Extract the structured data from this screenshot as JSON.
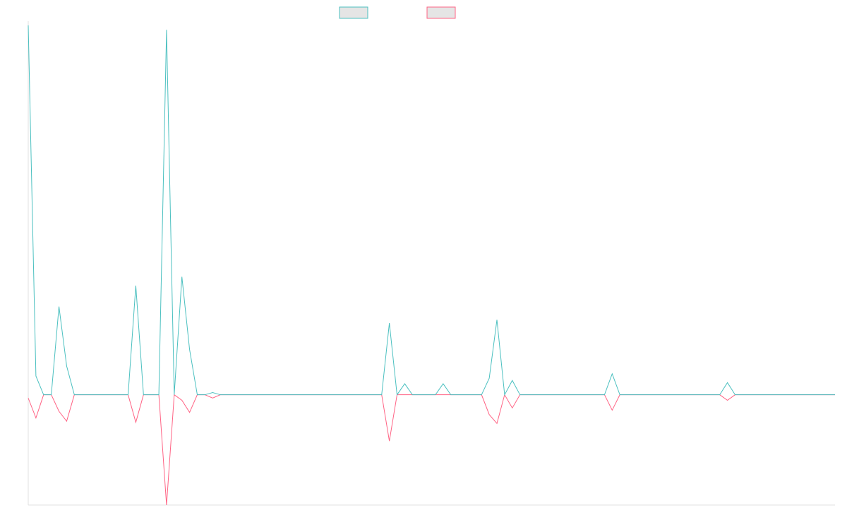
{
  "chart_data": {
    "type": "line",
    "title": "",
    "xlabel": "",
    "ylabel": "",
    "ylim": [
      -100,
      335
    ],
    "grid": false,
    "legend_position": "top-center",
    "x_count": 106,
    "series": [
      {
        "color": "#4bc0c0",
        "legend_fill": "#e5e5e5",
        "values": [
          335,
          17,
          0,
          0,
          80,
          26,
          0,
          0,
          0,
          0,
          0,
          0,
          0,
          0,
          99,
          0,
          0,
          0,
          331,
          0,
          107,
          41,
          0,
          0,
          2,
          0,
          0,
          0,
          0,
          0,
          0,
          0,
          0,
          0,
          0,
          0,
          0,
          0,
          0,
          0,
          0,
          0,
          0,
          0,
          0,
          0,
          0,
          65,
          0,
          10,
          0,
          0,
          0,
          0,
          10,
          0,
          0,
          0,
          0,
          0,
          15,
          68,
          0,
          13,
          0,
          0,
          0,
          0,
          0,
          0,
          0,
          0,
          0,
          0,
          0,
          0,
          19,
          0,
          0,
          0,
          0,
          0,
          0,
          0,
          0,
          0,
          0,
          0,
          0,
          0,
          0,
          11,
          0,
          0,
          0,
          0,
          0,
          0,
          0,
          0,
          0,
          0,
          0,
          0,
          0,
          0
        ]
      },
      {
        "color": "#ff6384",
        "legend_fill": "#e5e5e5",
        "values": [
          -3,
          -21,
          0,
          0,
          -15,
          -24,
          0,
          0,
          0,
          0,
          0,
          0,
          0,
          0,
          -25,
          0,
          0,
          0,
          -100,
          0,
          -5,
          -16,
          0,
          0,
          -3,
          0,
          0,
          0,
          0,
          0,
          0,
          0,
          0,
          0,
          0,
          0,
          0,
          0,
          0,
          0,
          0,
          0,
          0,
          0,
          0,
          0,
          0,
          -42,
          0,
          0,
          0,
          0,
          0,
          0,
          0,
          0,
          0,
          0,
          0,
          0,
          -18,
          -26,
          0,
          -12,
          0,
          0,
          0,
          0,
          0,
          0,
          0,
          0,
          0,
          0,
          0,
          0,
          -14,
          0,
          0,
          0,
          0,
          0,
          0,
          0,
          0,
          0,
          0,
          0,
          0,
          0,
          0,
          -5,
          0,
          0,
          0,
          0,
          0,
          0,
          0,
          0,
          0,
          0,
          0,
          0,
          0,
          0
        ]
      }
    ]
  }
}
